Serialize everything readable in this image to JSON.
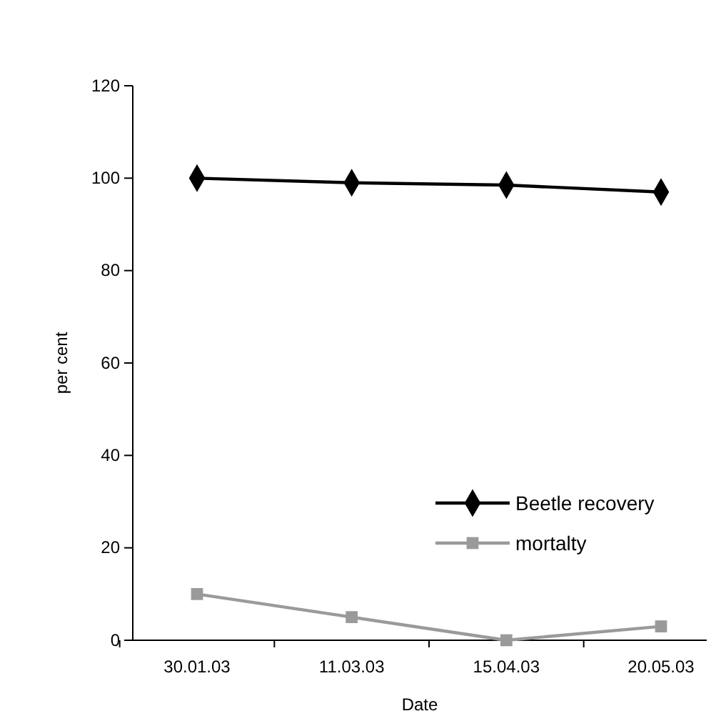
{
  "chart_data": {
    "type": "line",
    "xlabel": "Date",
    "ylabel": "per cent",
    "categories": [
      "30.01.03",
      "11.03.03",
      "15.04.03",
      "20.05.03"
    ],
    "ylim": [
      0,
      120
    ],
    "yticks": [
      0,
      20,
      40,
      60,
      80,
      100,
      120
    ],
    "series": [
      {
        "name": "Beetle recovery",
        "color": "#000000",
        "marker": "diamond",
        "values": [
          100,
          99,
          98.5,
          97
        ]
      },
      {
        "name": "mortalty",
        "color": "#9a9a9a",
        "marker": "square",
        "values": [
          10,
          5,
          0,
          3
        ]
      }
    ],
    "legend": "right",
    "grid": false
  }
}
